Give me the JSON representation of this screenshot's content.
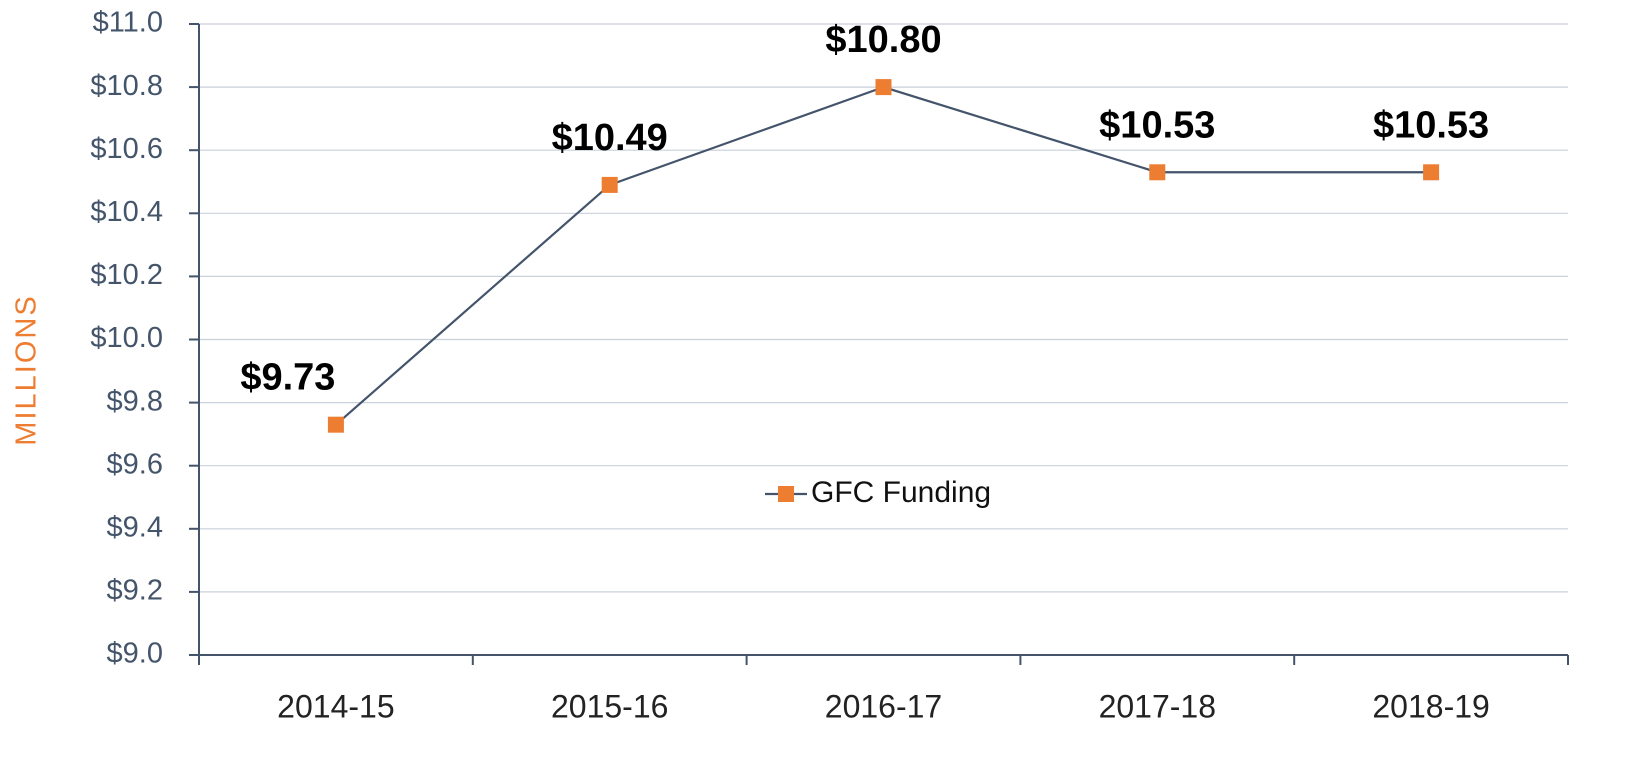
{
  "chart_data": {
    "type": "line",
    "y_label": "MILLIONS",
    "categories": [
      "2014-15",
      "2015-16",
      "2016-17",
      "2017-18",
      "2018-19"
    ],
    "series": [
      {
        "name": "GFC Funding",
        "color": "#ed7d31",
        "line_color": "#44546a",
        "values": [
          9.73,
          10.49,
          10.8,
          10.53,
          10.53
        ],
        "value_labels": [
          "$9.73",
          "$10.49",
          "$10.80",
          "$10.53",
          "$10.53"
        ]
      }
    ],
    "ylim": [
      9.0,
      11.0
    ],
    "yticks": [
      {
        "value": 9.0,
        "label": "$9.0"
      },
      {
        "value": 9.2,
        "label": "$9.2"
      },
      {
        "value": 9.4,
        "label": "$9.4"
      },
      {
        "value": 9.6,
        "label": "$9.6"
      },
      {
        "value": 9.8,
        "label": "$9.8"
      },
      {
        "value": 10.0,
        "label": "$10.0"
      },
      {
        "value": 10.2,
        "label": "$10.2"
      },
      {
        "value": 10.4,
        "label": "$10.4"
      },
      {
        "value": 10.6,
        "label": "$10.6"
      },
      {
        "value": 10.8,
        "label": "$10.8"
      },
      {
        "value": 11.0,
        "label": "$11.0"
      }
    ],
    "grid": true
  }
}
